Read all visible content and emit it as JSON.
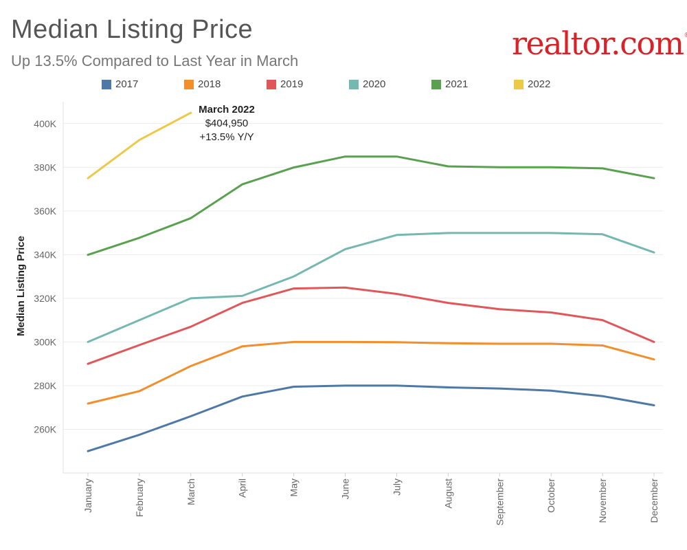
{
  "header": {
    "title": "Median Listing Price",
    "subtitle": "Up 13.5% Compared to Last Year in March",
    "logo_text": "realtor.com",
    "logo_mark": "®",
    "logo_color": "#d92228"
  },
  "annotation": {
    "title": "March 2022",
    "value": "$404,950",
    "change": "+13.5% Y/Y"
  },
  "chart_data": {
    "type": "line",
    "title": "Median Listing Price",
    "subtitle": "Up 13.5% Compared to Last Year in March",
    "xlabel": "",
    "ylabel": "Median Listing Price",
    "categories": [
      "January",
      "February",
      "March",
      "April",
      "May",
      "June",
      "July",
      "August",
      "September",
      "October",
      "November",
      "December"
    ],
    "ylim": [
      240000,
      410000
    ],
    "yticks": [
      260000,
      280000,
      300000,
      320000,
      340000,
      360000,
      380000,
      400000
    ],
    "ytick_labels": [
      "260K",
      "280K",
      "300K",
      "320K",
      "340K",
      "360K",
      "380K",
      "400K"
    ],
    "grid": true,
    "legend_position": "top",
    "series": [
      {
        "name": "2017",
        "color": "#4e79a7",
        "values": [
          250000,
          257500,
          266000,
          275000,
          279500,
          280000,
          280000,
          279200,
          278700,
          277700,
          275200,
          271000
        ]
      },
      {
        "name": "2018",
        "color": "#f28e2b",
        "values": [
          271800,
          277500,
          289000,
          298000,
          300000,
          300000,
          299900,
          299400,
          299200,
          299200,
          298400,
          292000
        ]
      },
      {
        "name": "2019",
        "color": "#e15759",
        "values": [
          290000,
          298600,
          307000,
          317900,
          324500,
          324900,
          322000,
          317900,
          315000,
          313500,
          310000,
          300000
        ]
      },
      {
        "name": "2020",
        "color": "#76b7b2",
        "values": [
          300000,
          310000,
          320000,
          321100,
          330000,
          342500,
          349000,
          349900,
          349900,
          349900,
          349300,
          341000
        ]
      },
      {
        "name": "2021",
        "color": "#59a14f",
        "values": [
          339900,
          347700,
          356700,
          372200,
          379900,
          384900,
          384900,
          380400,
          380000,
          380000,
          379500,
          375000
        ]
      },
      {
        "name": "2022",
        "color": "#edc948",
        "values": [
          375000,
          392500,
          404950,
          null,
          null,
          null,
          null,
          null,
          null,
          null,
          null,
          null
        ]
      }
    ]
  }
}
